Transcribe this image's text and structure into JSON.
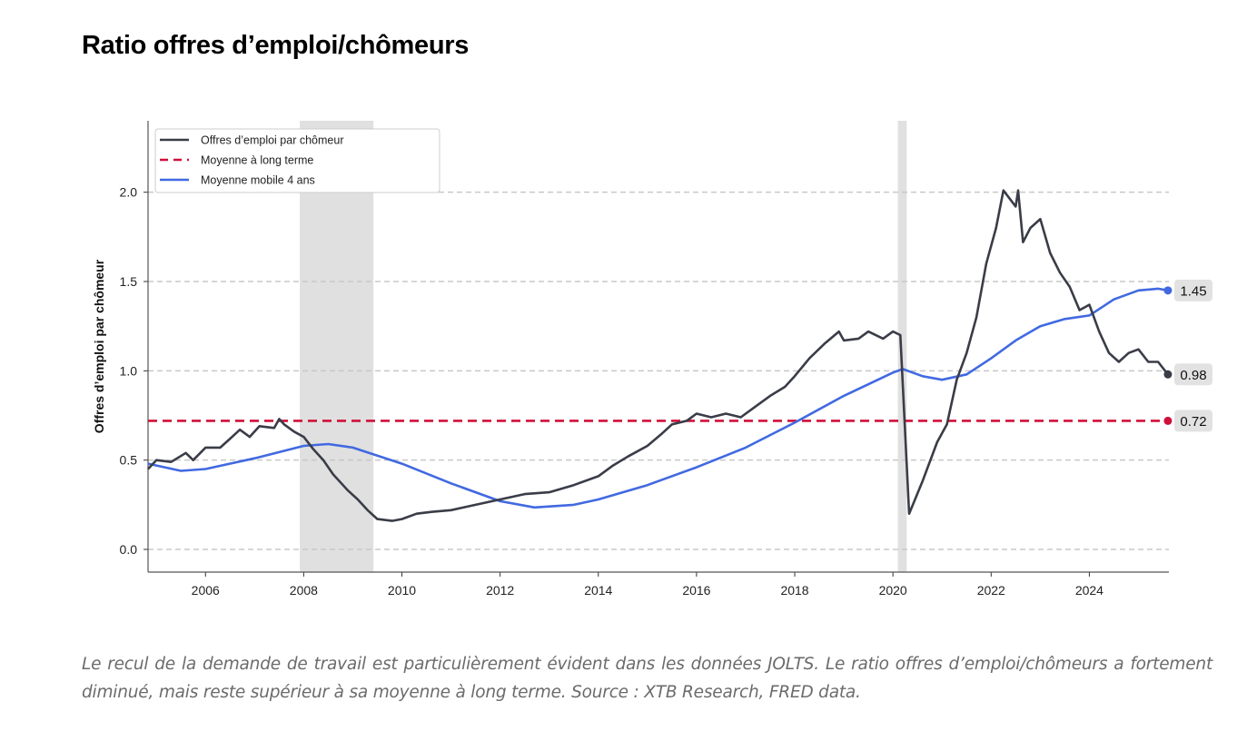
{
  "title": "Ratio offres d’emploi/chômeurs",
  "caption": "Le recul de la demande de travail est particulièrement évident dans les données JOLTS. Le ratio offres d’emploi/chômeurs a fortement diminué, mais reste supérieur à sa moyenne à long terme.  Source : XTB Research, FRED data.",
  "chart_data": {
    "type": "line",
    "ylabel": "Offres d’emploi par chômeur",
    "xlabel": "",
    "xlim": [
      2004.83,
      2025.62
    ],
    "ylim": [
      -0.127,
      2.4
    ],
    "xticks": [
      2006,
      2008,
      2010,
      2012,
      2014,
      2016,
      2018,
      2020,
      2022,
      2024
    ],
    "yticks": [
      0.0,
      0.5,
      1.0,
      1.5,
      2.0
    ],
    "ytick_labels": [
      "0.0",
      "0.5",
      "1.0",
      "1.5",
      "2.0"
    ],
    "grid": "horizontal dashed",
    "legend_position": "top-left",
    "recessions": [
      [
        2007.92,
        2009.42
      ],
      [
        2020.1,
        2020.28
      ]
    ],
    "series": [
      {
        "name": "Offres d’emploi par chômeur",
        "color": "#3a3d48",
        "style": "solid",
        "x": [
          2004.83,
          2005.0,
          2005.3,
          2005.6,
          2005.75,
          2006.0,
          2006.3,
          2006.5,
          2006.7,
          2006.9,
          2007.1,
          2007.4,
          2007.5,
          2007.6,
          2007.8,
          2008.0,
          2008.2,
          2008.4,
          2008.6,
          2008.9,
          2009.1,
          2009.3,
          2009.5,
          2009.8,
          2010.0,
          2010.3,
          2010.6,
          2011.0,
          2011.5,
          2012.0,
          2012.5,
          2013.0,
          2013.5,
          2014.0,
          2014.3,
          2014.6,
          2015.0,
          2015.3,
          2015.5,
          2015.8,
          2016.0,
          2016.3,
          2016.6,
          2016.9,
          2017.2,
          2017.5,
          2017.8,
          2018.0,
          2018.3,
          2018.6,
          2018.9,
          2019.0,
          2019.3,
          2019.5,
          2019.8,
          2020.0,
          2020.15,
          2020.33,
          2020.6,
          2020.9,
          2021.1,
          2021.3,
          2021.5,
          2021.7,
          2021.9,
          2022.1,
          2022.25,
          2022.5,
          2022.55,
          2022.65,
          2022.8,
          2023.0,
          2023.2,
          2023.4,
          2023.6,
          2023.8,
          2024.0,
          2024.2,
          2024.4,
          2024.6,
          2024.8,
          2025.0,
          2025.2,
          2025.4,
          2025.6
        ],
        "values": [
          0.45,
          0.5,
          0.49,
          0.54,
          0.5,
          0.57,
          0.57,
          0.62,
          0.67,
          0.63,
          0.69,
          0.68,
          0.73,
          0.7,
          0.66,
          0.63,
          0.56,
          0.5,
          0.42,
          0.33,
          0.28,
          0.22,
          0.17,
          0.16,
          0.17,
          0.2,
          0.21,
          0.22,
          0.25,
          0.28,
          0.31,
          0.32,
          0.36,
          0.41,
          0.47,
          0.52,
          0.58,
          0.65,
          0.7,
          0.72,
          0.76,
          0.74,
          0.76,
          0.74,
          0.8,
          0.86,
          0.91,
          0.97,
          1.07,
          1.15,
          1.22,
          1.17,
          1.18,
          1.22,
          1.18,
          1.22,
          1.2,
          0.2,
          0.38,
          0.6,
          0.7,
          0.95,
          1.1,
          1.3,
          1.6,
          1.8,
          2.01,
          1.92,
          2.01,
          1.72,
          1.8,
          1.85,
          1.66,
          1.55,
          1.47,
          1.34,
          1.37,
          1.22,
          1.1,
          1.05,
          1.1,
          1.12,
          1.05,
          1.05,
          0.98
        ],
        "end_label": "0.98"
      },
      {
        "name": "Moyenne à long terme",
        "color": "#d0103a",
        "style": "dashed",
        "x": [
          2004.83,
          2025.6
        ],
        "values": [
          0.72,
          0.72
        ],
        "end_label": "0.72"
      },
      {
        "name": "Moyenne mobile 4 ans",
        "color": "#4169e1",
        "style": "solid",
        "x": [
          2004.83,
          2005.5,
          2006.0,
          2007.0,
          2008.0,
          2008.5,
          2009.0,
          2010.0,
          2011.0,
          2012.0,
          2012.7,
          2013.5,
          2014.0,
          2015.0,
          2016.0,
          2017.0,
          2018.0,
          2019.0,
          2020.0,
          2020.2,
          2020.6,
          2021.0,
          2021.5,
          2022.0,
          2022.5,
          2023.0,
          2023.5,
          2024.0,
          2024.5,
          2025.0,
          2025.4,
          2025.6
        ],
        "values": [
          0.48,
          0.44,
          0.45,
          0.51,
          0.58,
          0.59,
          0.57,
          0.48,
          0.37,
          0.27,
          0.235,
          0.25,
          0.28,
          0.36,
          0.46,
          0.57,
          0.71,
          0.86,
          0.99,
          1.01,
          0.97,
          0.95,
          0.98,
          1.07,
          1.17,
          1.25,
          1.29,
          1.31,
          1.4,
          1.45,
          1.46,
          1.45
        ],
        "end_label": "1.45"
      }
    ]
  }
}
